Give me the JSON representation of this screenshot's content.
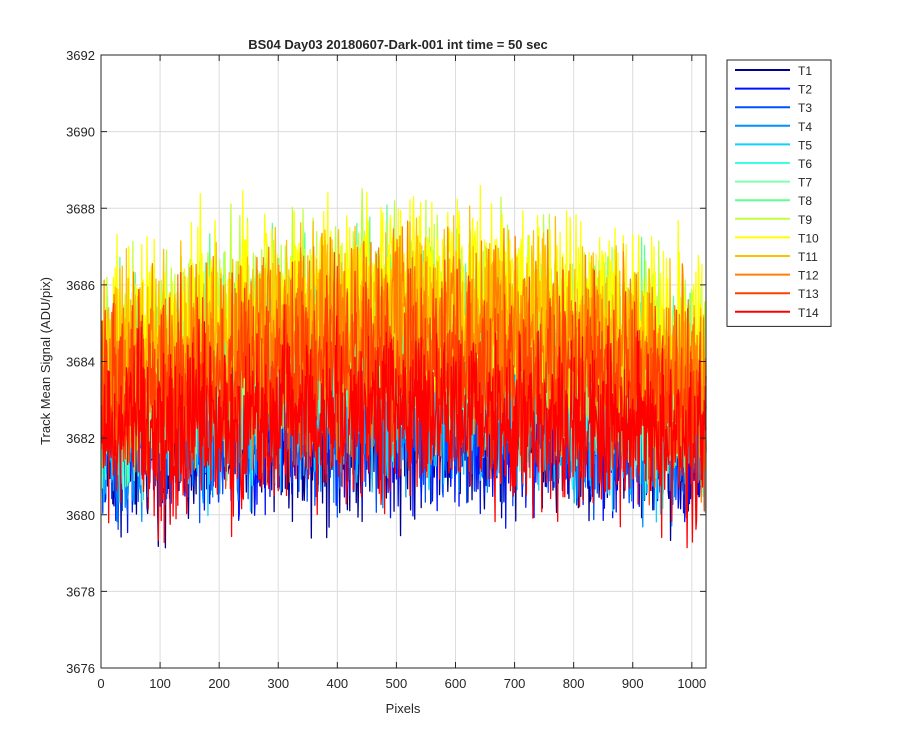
{
  "chart_data": {
    "type": "line",
    "title": "BS04 Day03 20180607-Dark-001 int time = 50 sec",
    "xlabel": "Pixels",
    "ylabel": "Track Mean Signal (ADU/pix)",
    "xlim": [
      0,
      1024
    ],
    "ylim": [
      3676,
      3692
    ],
    "x_ticks": [
      0,
      100,
      200,
      300,
      400,
      500,
      600,
      700,
      800,
      900,
      1000
    ],
    "y_ticks": [
      3676,
      3678,
      3680,
      3682,
      3684,
      3686,
      3688,
      3690,
      3692
    ],
    "grid": true,
    "legend_position": "outside-top-right",
    "n_points": 1024,
    "series": [
      {
        "name": "T1",
        "color": "#00008f",
        "mean": 3682.0,
        "amplitude": 1.6,
        "curvature": 0.4
      },
      {
        "name": "T2",
        "color": "#0010ff",
        "mean": 3682.2,
        "amplitude": 1.6,
        "curvature": 0.5
      },
      {
        "name": "T3",
        "color": "#0050ff",
        "mean": 3682.4,
        "amplitude": 1.6,
        "curvature": 0.6
      },
      {
        "name": "T4",
        "color": "#0090ff",
        "mean": 3682.5,
        "amplitude": 1.6,
        "curvature": 0.7
      },
      {
        "name": "T5",
        "color": "#10d0ff",
        "mean": 3682.8,
        "amplitude": 1.7,
        "curvature": 0.8
      },
      {
        "name": "T6",
        "color": "#40ffe0",
        "mean": 3683.2,
        "amplitude": 1.7,
        "curvature": 1.0
      },
      {
        "name": "T7",
        "color": "#80ffb0",
        "mean": 3683.6,
        "amplitude": 1.7,
        "curvature": 1.2
      },
      {
        "name": "T8",
        "color": "#60ff90",
        "mean": 3684.2,
        "amplitude": 1.8,
        "curvature": 1.4
      },
      {
        "name": "T9",
        "color": "#c0ff40",
        "mean": 3684.8,
        "amplitude": 1.8,
        "curvature": 1.6
      },
      {
        "name": "T10",
        "color": "#ffff00",
        "mean": 3685.0,
        "amplitude": 1.8,
        "curvature": 1.8
      },
      {
        "name": "T11",
        "color": "#ffc000",
        "mean": 3684.5,
        "amplitude": 1.8,
        "curvature": 1.6
      },
      {
        "name": "T12",
        "color": "#ff8000",
        "mean": 3684.0,
        "amplitude": 1.8,
        "curvature": 1.3
      },
      {
        "name": "T13",
        "color": "#ff4000",
        "mean": 3683.3,
        "amplitude": 1.8,
        "curvature": 1.0
      },
      {
        "name": "T14",
        "color": "#ff0000",
        "mean": 3682.3,
        "amplitude": 1.7,
        "curvature": 0.7
      }
    ]
  }
}
